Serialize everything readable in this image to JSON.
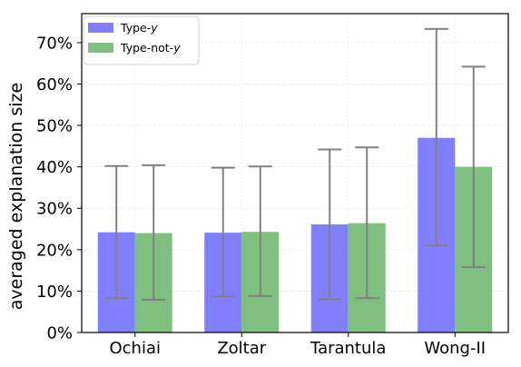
{
  "chart_data": {
    "type": "bar",
    "categories": [
      "Ochiai",
      "Zoltar",
      "Tarantula",
      "Wong-II"
    ],
    "ylabel": "averaged explanation size",
    "xlabel": "",
    "title": "",
    "ylim": [
      0,
      77
    ],
    "yticks": [
      0,
      10,
      20,
      30,
      40,
      50,
      60,
      70
    ],
    "ytick_suffix": "%",
    "grid": true,
    "legend_position": "top-left",
    "series": [
      {
        "name_prefix": "Type-",
        "name_italic": "y",
        "color": "#7f7fff",
        "values": [
          24.2,
          24.1,
          26.1,
          47.0
        ],
        "err_low": [
          8.3,
          8.7,
          8.0,
          21.0
        ],
        "err_high": [
          40.2,
          39.8,
          44.2,
          73.3
        ]
      },
      {
        "name_prefix": "Type-not-",
        "name_italic": "y",
        "color": "#7fbf7f",
        "values": [
          24.0,
          24.3,
          26.4,
          40.0
        ],
        "err_low": [
          7.9,
          8.8,
          8.3,
          15.8
        ],
        "err_high": [
          40.4,
          40.1,
          44.7,
          64.2
        ]
      }
    ],
    "errorbar_color": "#808080"
  }
}
